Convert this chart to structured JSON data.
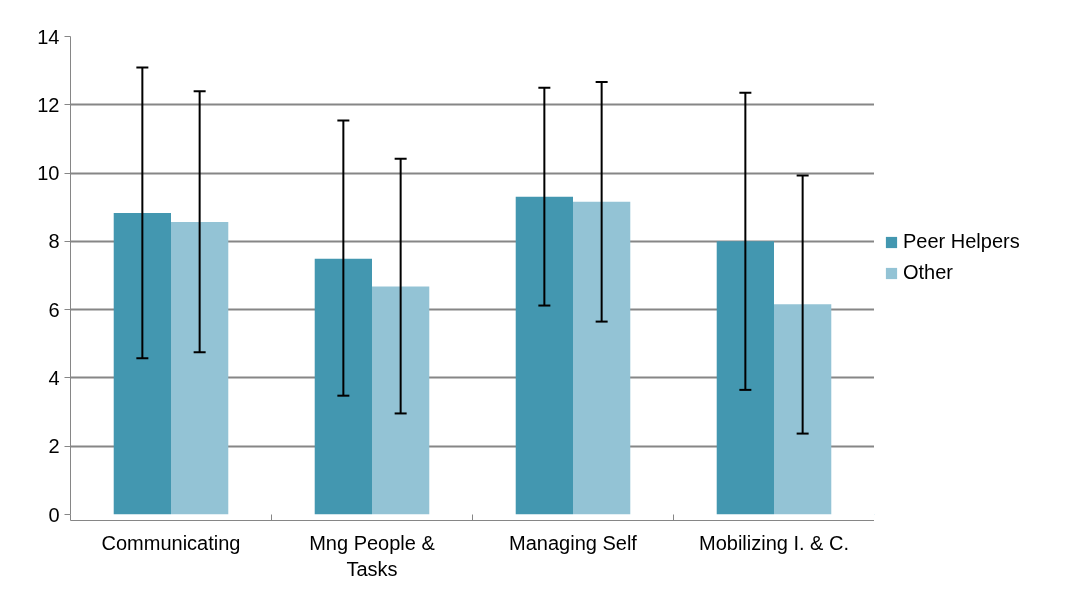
{
  "chart_data": {
    "type": "bar",
    "categories": [
      "Communicating",
      "Mng People & Tasks",
      "Managing Self",
      "Mobilizing I. & C."
    ],
    "series": [
      {
        "name": "Peer Helpers",
        "color": "#4397b0",
        "values": [
          8.83,
          7.49,
          9.31,
          8.0
        ],
        "errors": [
          [
            4.58,
            13.09
          ],
          [
            3.48,
            11.54
          ],
          [
            6.12,
            12.5
          ],
          [
            3.65,
            12.35
          ]
        ]
      },
      {
        "name": "Other",
        "color": "#93c3d5",
        "values": [
          8.57,
          6.68,
          9.16,
          6.16
        ],
        "errors": [
          [
            4.75,
            12.4
          ],
          [
            2.96,
            10.42
          ],
          [
            5.65,
            12.67
          ],
          [
            2.37,
            9.93
          ]
        ]
      }
    ],
    "ylim": [
      0,
      14
    ],
    "yticks": [
      0,
      2,
      4,
      6,
      8,
      10,
      12,
      14
    ],
    "grid": "y",
    "legend": "right"
  }
}
